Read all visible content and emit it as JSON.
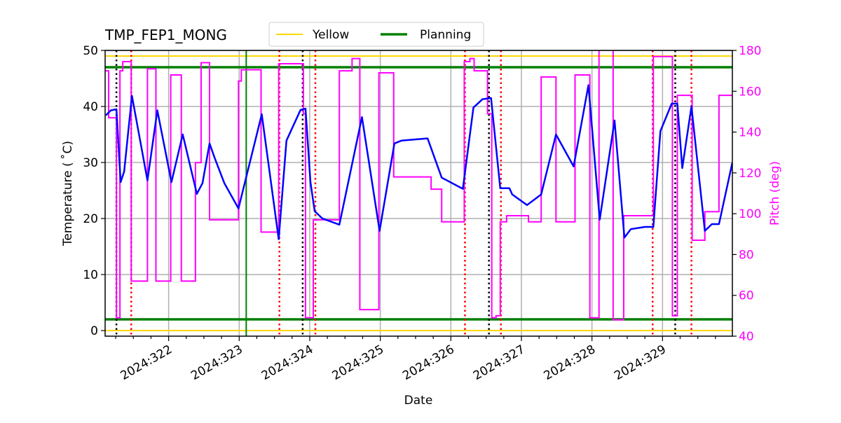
{
  "chart_data": {
    "type": "line",
    "title": "TMP_FEP1_MONG",
    "xlabel": "Date",
    "ylabel": "Temperature ($^\\circ$C)",
    "ylabel_display": "Temperature ( ˚C)",
    "y2label": "Pitch (deg)",
    "xlim": [
      321.1,
      329.99
    ],
    "ylim": [
      -1,
      50
    ],
    "y2lim": [
      40,
      180
    ],
    "grid": true,
    "x_ticks": [
      322,
      323,
      324,
      325,
      326,
      327,
      328,
      329
    ],
    "x_tick_labels": [
      "2024:322",
      "2024:323",
      "2024:324",
      "2024:325",
      "2024:326",
      "2024:327",
      "2024:328",
      "2024:329"
    ],
    "y_ticks": [
      0,
      10,
      20,
      30,
      40,
      50
    ],
    "y2_ticks": [
      40,
      60,
      80,
      100,
      120,
      140,
      160,
      180
    ],
    "legend": {
      "placement": "top-center",
      "entries": [
        {
          "label": "Yellow",
          "color": "#ffd700"
        },
        {
          "label": "Planning",
          "color": "#008000"
        }
      ]
    },
    "colors": {
      "temperature": "#0000ff",
      "pitch": "#ff00ff",
      "yellow": "#ffd700",
      "planning": "#008000",
      "black_events": "#000000",
      "red_events": "#ff0000"
    },
    "limits": {
      "yellow": [
        0,
        49
      ],
      "planning": [
        2,
        47
      ]
    },
    "planning_vertical": 323.1,
    "black_event_lines": [
      321.26,
      323.9,
      326.54,
      329.18
    ],
    "red_event_lines": [
      321.47,
      323.57,
      324.08,
      326.2,
      326.71,
      328.86,
      329.41
    ],
    "temperature": {
      "x": [
        321.11,
        321.18,
        321.26,
        321.32,
        321.37,
        321.48,
        321.7,
        321.84,
        322.04,
        322.2,
        322.4,
        322.48,
        322.58,
        322.65,
        322.79,
        322.99,
        323.32,
        323.56,
        323.67,
        323.87,
        323.94,
        324.01,
        324.07,
        324.18,
        324.42,
        324.74,
        324.99,
        325.2,
        325.3,
        325.67,
        325.87,
        326.17,
        326.32,
        326.45,
        326.57,
        326.7,
        326.83,
        326.87,
        327.08,
        327.28,
        327.49,
        327.74,
        327.95,
        328.11,
        328.32,
        328.46,
        328.55,
        328.75,
        328.87,
        328.97,
        329.13,
        329.21,
        329.28,
        329.41,
        329.6,
        329.7,
        329.8,
        329.99
      ],
      "y": [
        38.4,
        39.3,
        39.5,
        26.5,
        28.4,
        41.9,
        26.8,
        39.3,
        26.5,
        35.0,
        24.4,
        26.3,
        33.4,
        30.9,
        26.3,
        21.8,
        38.6,
        16.3,
        33.9,
        39.4,
        39.6,
        26.5,
        21.3,
        20.0,
        18.9,
        38.1,
        17.8,
        33.4,
        33.9,
        34.3,
        27.3,
        25.3,
        39.8,
        41.3,
        41.5,
        25.4,
        25.4,
        24.3,
        22.4,
        24.3,
        35.0,
        29.3,
        43.8,
        19.8,
        37.5,
        16.6,
        18.1,
        18.5,
        18.5,
        35.6,
        40.5,
        40.5,
        29.0,
        40.0,
        17.8,
        19.0,
        19.0,
        30.0
      ]
    },
    "pitch": {
      "x": [
        321.1,
        321.15,
        321.26,
        321.31,
        321.35,
        321.47,
        321.7,
        321.82,
        322.03,
        322.18,
        322.38,
        322.46,
        322.58,
        322.99,
        323.03,
        323.31,
        323.56,
        323.91,
        323.94,
        324.05,
        324.42,
        324.6,
        324.71,
        324.98,
        325.19,
        325.72,
        325.87,
        326.19,
        326.27,
        326.33,
        326.52,
        326.58,
        326.64,
        326.7,
        326.79,
        327.1,
        327.28,
        327.49,
        327.76,
        327.97,
        328.1,
        328.3,
        328.45,
        328.87,
        329.14,
        329.21,
        329.42,
        329.6,
        329.8,
        329.99
      ],
      "y": [
        170,
        147,
        49,
        170,
        174.5,
        67,
        171,
        67,
        168,
        67,
        125,
        174,
        97,
        165,
        170.5,
        91,
        173.5,
        149,
        49,
        97,
        170,
        176,
        53,
        169,
        118,
        112,
        96,
        174.5,
        176,
        170,
        149,
        49,
        50,
        96,
        99,
        96,
        167,
        96,
        168,
        49,
        185,
        48,
        99,
        177,
        50,
        158,
        87,
        101,
        158,
        158
      ]
    }
  }
}
